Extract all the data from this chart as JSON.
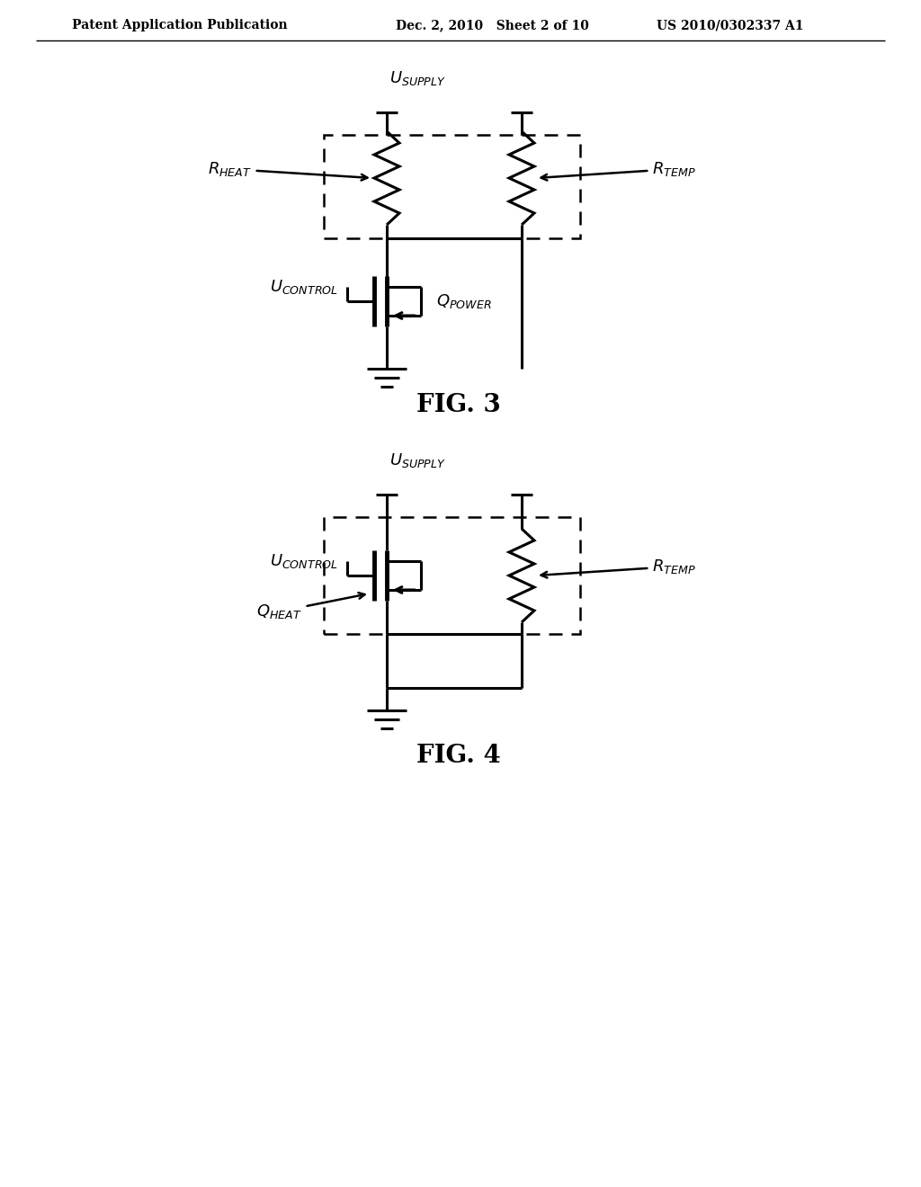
{
  "bg_color": "#ffffff",
  "line_color": "#000000",
  "header_left": "Patent Application Publication",
  "header_mid": "Dec. 2, 2010   Sheet 2 of 10",
  "header_right": "US 2010/0302337 A1",
  "fig3_label": "FIG. 3",
  "fig4_label": "FIG. 4",
  "lw": 2.2,
  "lw_thick": 3.5
}
